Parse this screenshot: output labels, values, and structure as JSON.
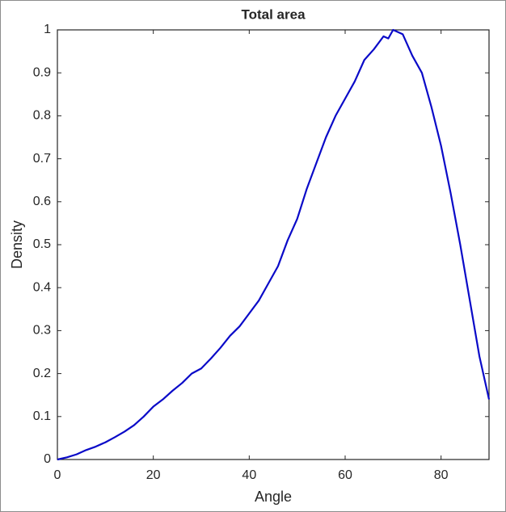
{
  "chart_data": {
    "type": "line",
    "title": "Total area",
    "xlabel": "Angle",
    "ylabel": "Density",
    "x": [
      0,
      2,
      4,
      6,
      8,
      10,
      12,
      14,
      16,
      18,
      20,
      22,
      24,
      26,
      28,
      30,
      32,
      34,
      36,
      38,
      40,
      42,
      44,
      46,
      48,
      50,
      52,
      54,
      56,
      58,
      60,
      62,
      64,
      66,
      68,
      69,
      70,
      72,
      74,
      76,
      78,
      80,
      82,
      84,
      86,
      88,
      90
    ],
    "values": [
      0,
      0.005,
      0.012,
      0.022,
      0.03,
      0.04,
      0.052,
      0.065,
      0.08,
      0.1,
      0.123,
      0.14,
      0.16,
      0.178,
      0.2,
      0.212,
      0.235,
      0.26,
      0.288,
      0.31,
      0.34,
      0.37,
      0.41,
      0.45,
      0.51,
      0.56,
      0.63,
      0.69,
      0.75,
      0.8,
      0.84,
      0.88,
      0.93,
      0.955,
      0.985,
      0.98,
      1.0,
      0.99,
      0.94,
      0.9,
      0.82,
      0.73,
      0.62,
      0.5,
      0.37,
      0.24,
      0.14
    ],
    "color": "#0a0ac8",
    "xlim": [
      0,
      90
    ],
    "xticks": [
      0,
      20,
      40,
      60,
      80
    ],
    "ylim": [
      0,
      1
    ],
    "yticks": [
      0,
      0.1,
      0.2,
      0.3,
      0.4,
      0.5,
      0.6,
      0.7,
      0.8,
      0.9,
      1
    ],
    "grid": false
  }
}
